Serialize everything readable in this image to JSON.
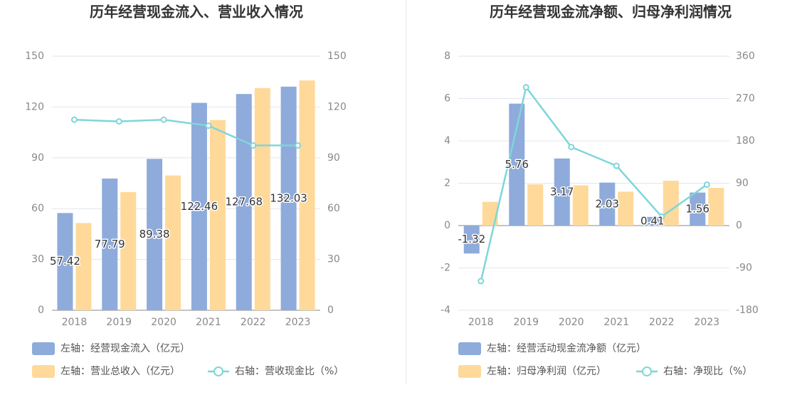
{
  "colors": {
    "bar_left": "#8eabdb",
    "bar_right": "#ffd99a",
    "line": "#7fd6d9",
    "axis_text": "#888888",
    "title_text": "#333333",
    "grid": "#e3e6ef",
    "label_text": "#333333"
  },
  "chart_data": [
    {
      "type": "bar",
      "title": "历年经营现金流入、营业收入情况",
      "categories": [
        "2018",
        "2019",
        "2020",
        "2021",
        "2022",
        "2023"
      ],
      "y_left": {
        "min": 0,
        "max": 150,
        "ticks": [
          "0",
          "30",
          "60",
          "90",
          "120",
          "150"
        ]
      },
      "y_right": {
        "min": 0,
        "max": 150,
        "ticks": [
          "0",
          "30",
          "60",
          "90",
          "120",
          "150"
        ]
      },
      "series": [
        {
          "name": "左轴：经营现金流入（亿元）",
          "kind": "bar",
          "axis": "left",
          "values": [
            57.42,
            77.79,
            89.38,
            122.46,
            127.68,
            132.03
          ],
          "labels": [
            "57.42",
            "77.79",
            "89.38",
            "122.46",
            "127.68",
            "132.03"
          ]
        },
        {
          "name": "左轴：营业总收入（亿元）",
          "kind": "bar",
          "axis": "left",
          "values": [
            51.5,
            69.8,
            79.6,
            112.3,
            131.2,
            135.7
          ]
        },
        {
          "name": "右轴：营收现金比（%）",
          "kind": "line",
          "axis": "right",
          "values": [
            112.5,
            111.5,
            112.5,
            109.0,
            97.3,
            97.3
          ]
        }
      ],
      "legend": "bottom-left",
      "grid": true
    },
    {
      "type": "bar",
      "title": "历年经营现金流净额、归母净利润情况",
      "categories": [
        "2018",
        "2019",
        "2020",
        "2021",
        "2022",
        "2023"
      ],
      "y_left": {
        "min": -4,
        "max": 8,
        "ticks": [
          "-4",
          "-2",
          "0",
          "2",
          "4",
          "6",
          "8"
        ]
      },
      "y_right": {
        "min": -180,
        "max": 360,
        "ticks": [
          "-180",
          "-90",
          "0",
          "90",
          "180",
          "270",
          "360"
        ]
      },
      "series": [
        {
          "name": "左轴：经营活动现金流净额（亿元）",
          "kind": "bar",
          "axis": "left",
          "values": [
            -1.32,
            5.76,
            3.17,
            2.03,
            0.41,
            1.56
          ],
          "labels": [
            "-1.32",
            "5.76",
            "3.17",
            "2.03",
            "0.41",
            "1.56"
          ]
        },
        {
          "name": "左轴：归母净利润（亿元）",
          "kind": "bar",
          "axis": "left",
          "values": [
            1.12,
            1.95,
            1.9,
            1.6,
            2.12,
            1.78
          ]
        },
        {
          "name": "右轴：净现比（%）",
          "kind": "line",
          "axis": "right",
          "values": [
            -118,
            294,
            167,
            127,
            19,
            87
          ]
        }
      ],
      "legend": "bottom-left",
      "grid": true
    }
  ]
}
